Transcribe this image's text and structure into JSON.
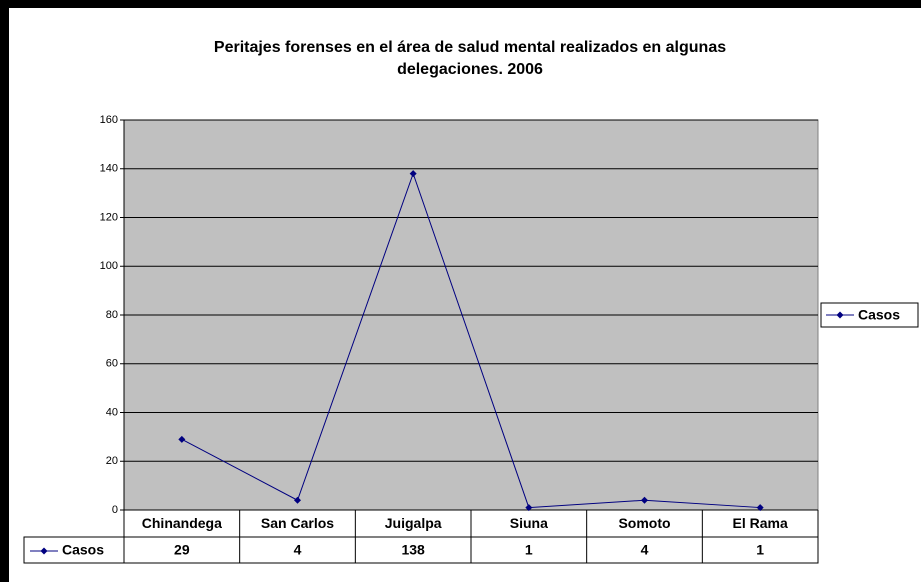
{
  "chart_data": {
    "type": "line",
    "title": [
      "Peritajes forenses en el área de salud mental realizados en algunas",
      "delegaciones. 2006"
    ],
    "categories": [
      "Chinandega",
      "San Carlos",
      "Juigalpa",
      "Siuna",
      "Somoto",
      "El Rama"
    ],
    "series": [
      {
        "name": "Casos",
        "color": "#000080",
        "values": [
          29,
          4,
          138,
          1,
          4,
          1
        ]
      }
    ],
    "ylim": [
      0,
      160
    ],
    "yticks": [
      0,
      20,
      40,
      60,
      80,
      100,
      120,
      140,
      160
    ],
    "grid": true,
    "legend": "right",
    "plot_background": "#c0c0c0",
    "data_table": true
  }
}
